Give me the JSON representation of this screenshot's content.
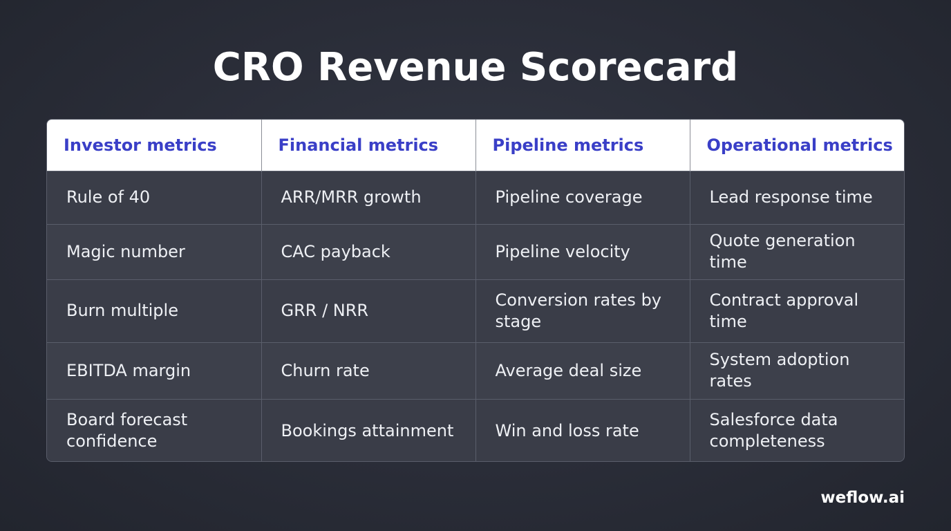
{
  "title": "CRO Revenue Scorecard",
  "table": {
    "headers": [
      "Investor metrics",
      "Financial metrics",
      "Pipeline metrics",
      "Operational metrics"
    ],
    "rows": [
      [
        "Rule of 40",
        "ARR/MRR growth",
        "Pipeline coverage",
        "Lead response time"
      ],
      [
        "Magic number",
        "CAC payback",
        "Pipeline velocity",
        "Quote generation time"
      ],
      [
        "Burn multiple",
        "GRR / NRR",
        "Conversion rates by stage",
        "Contract approval time"
      ],
      [
        "EBITDA margin",
        "Churn rate",
        "Average deal size",
        "System adoption rates"
      ],
      [
        "Board forecast confidence",
        "Bookings attainment",
        "Win and loss rate",
        "Salesforce data completeness"
      ]
    ]
  },
  "brand": "weflow.ai",
  "colors": {
    "background": "#2a2d38",
    "header_background": "#ffffff",
    "header_text": "#3a3fc7",
    "cell_text": "#eef0f4"
  }
}
